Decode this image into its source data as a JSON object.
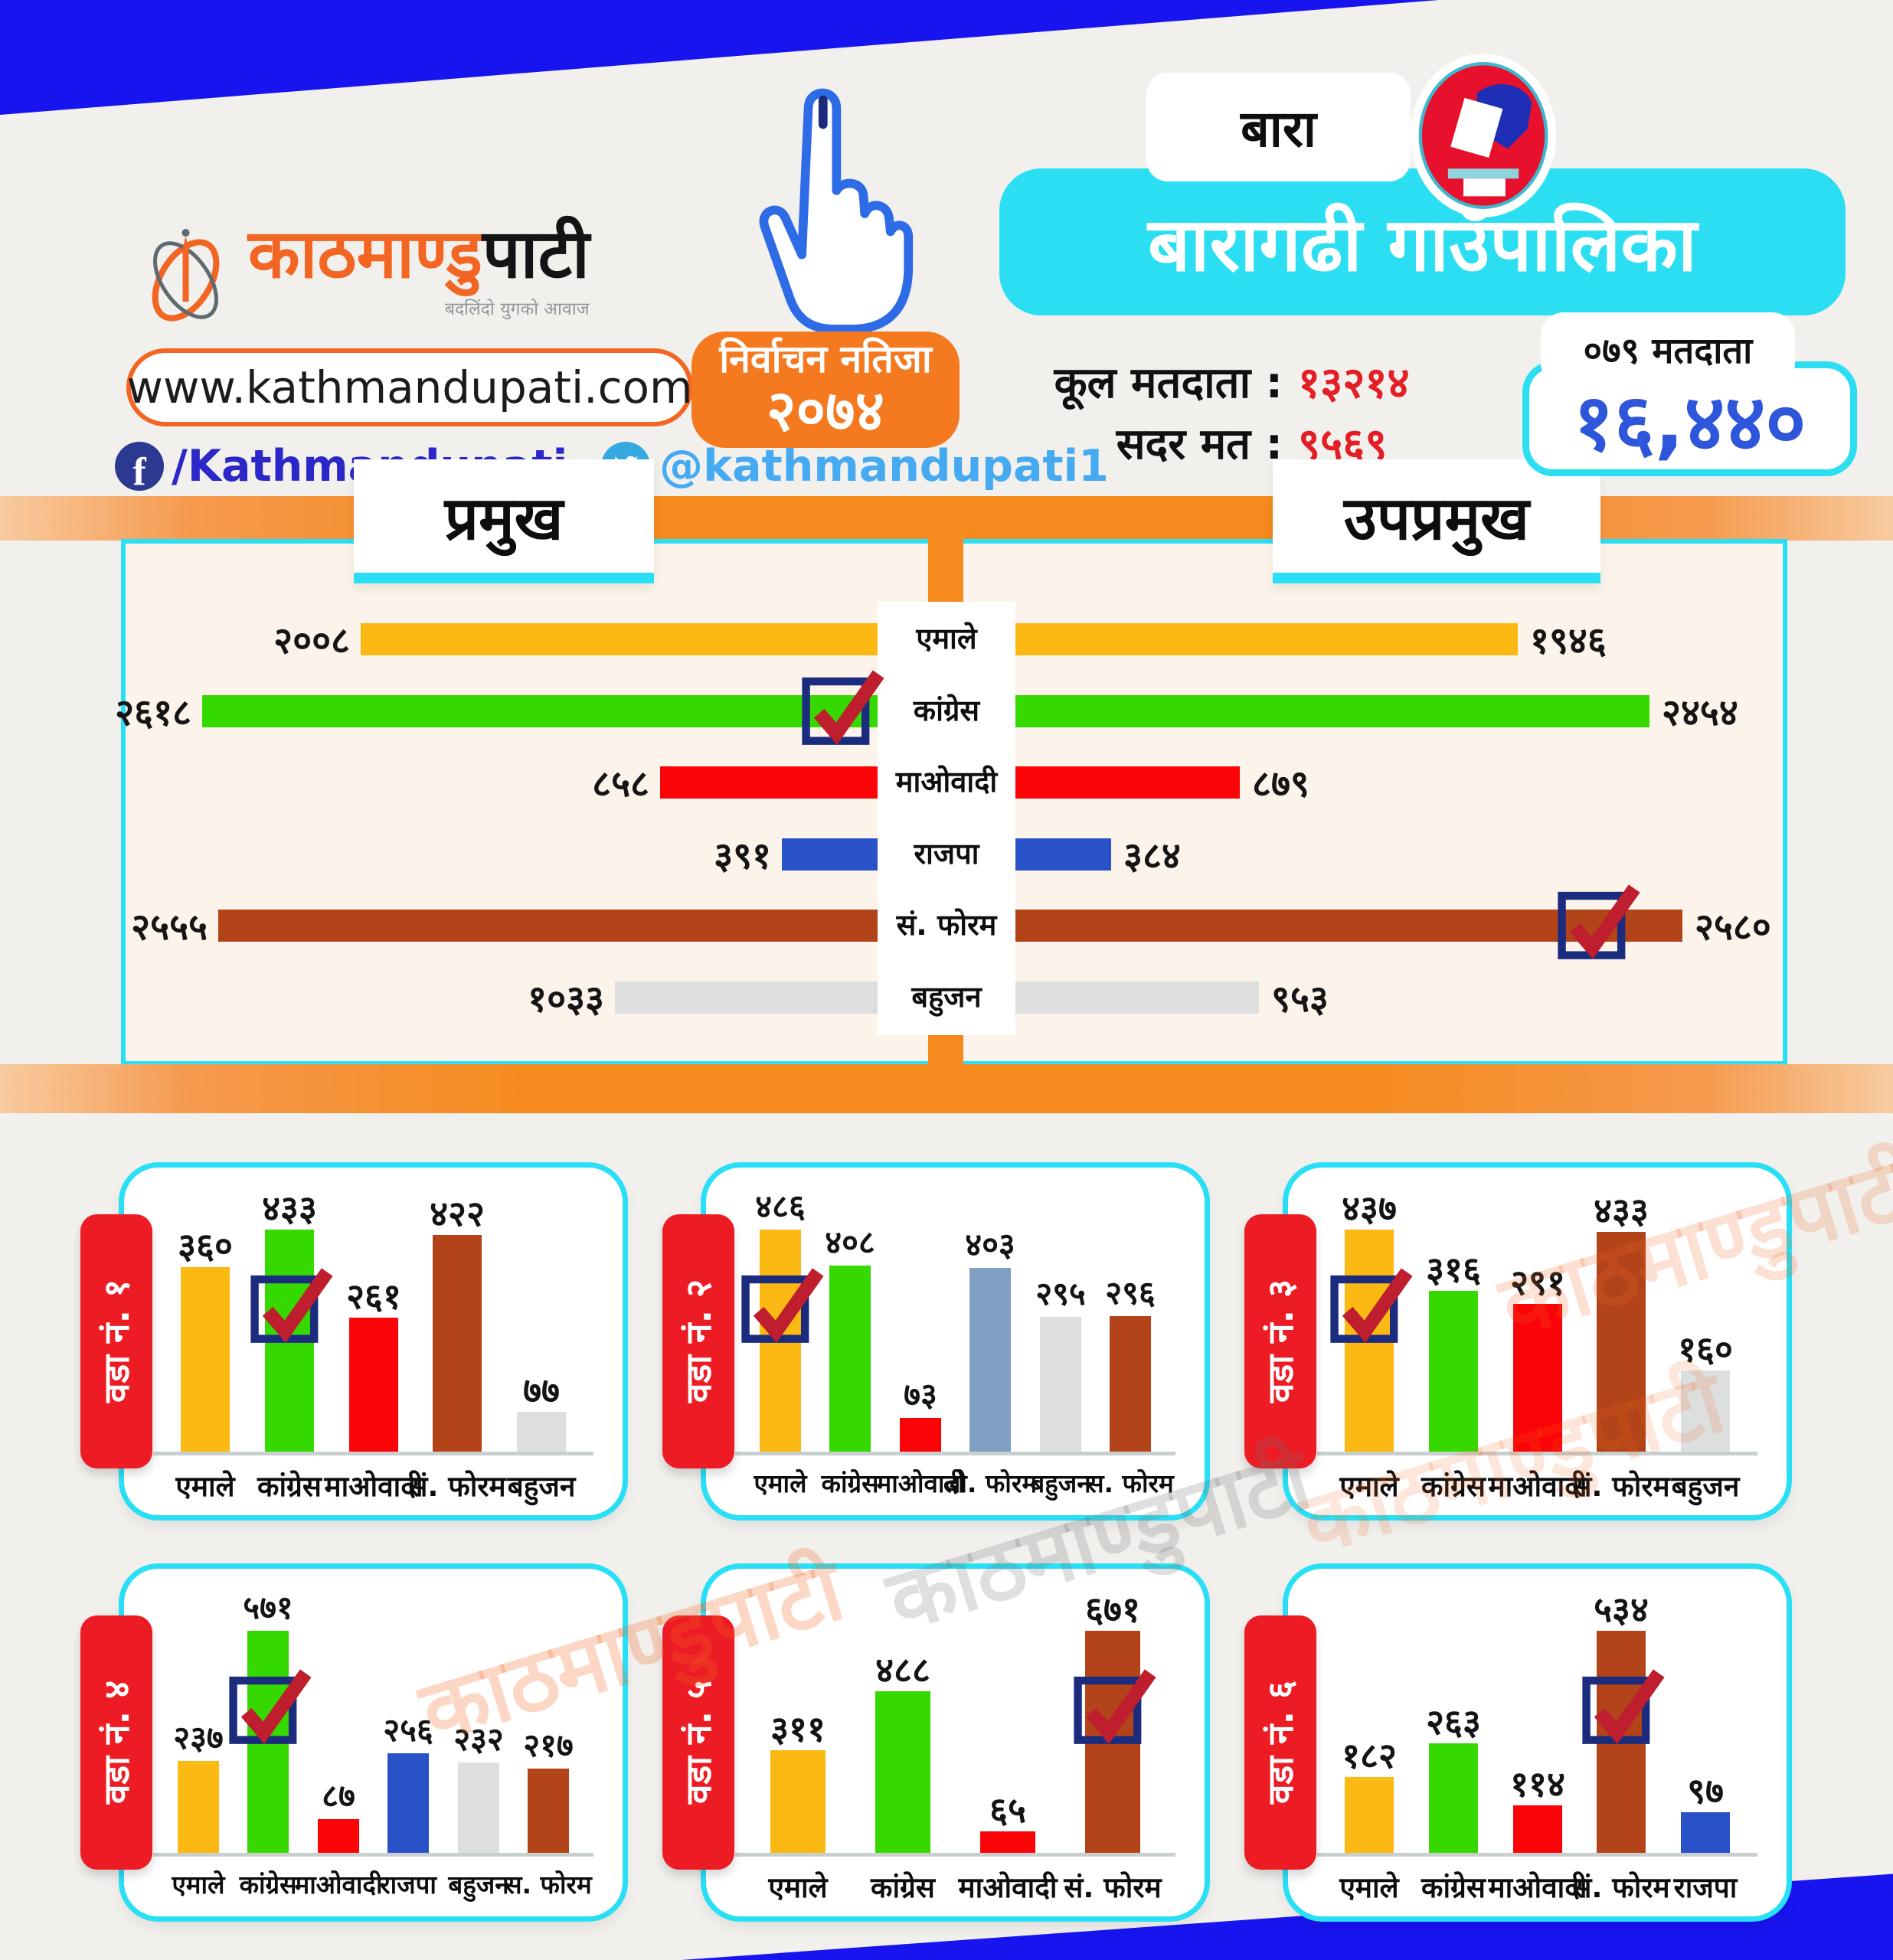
{
  "brand": {
    "logo_orange": "काठमाण्डु",
    "logo_black": "पाटी",
    "tagline": "बदलिंदो युगको आवाज",
    "website": "www.kathmandupati.com",
    "facebook": "/Kathmandupati",
    "twitter": "@kathmandupati1"
  },
  "header": {
    "district": "बारा",
    "title": "बारागढी गाउँपालिका",
    "election_box_line1": "निर्वाचन नतिजा",
    "election_box_line2": "२०७४",
    "total_voters_label": "कूल मतदाता :",
    "total_voters_value": "१३२१४",
    "valid_votes_label": "सदर मत :",
    "valid_votes_value": "९५६९",
    "voters_tab": "०७९ मतदाता",
    "big_number": "१६,४४०"
  },
  "watermark": "काठमाण्डुपाटी",
  "colors": {
    "uml_yellow": "#FDB913",
    "congress_green": "#35D900",
    "maoist_red": "#FB0407",
    "forum_brown": "#B34419",
    "bahujan_gray": "#DDDFDF",
    "lforum_steelblue": "#7FA0C2",
    "rajpa_blue": "#2A52C8",
    "cyan_accent": "#29DFF5",
    "orange_accent": "#F68A1E",
    "deep_blue": "#1814F0",
    "value_red": "#E31E24",
    "big_number_blue": "#2D56DB",
    "check_navy": "#1B2C7E",
    "check_red": "#BE1E2D",
    "tab_red": "#ED1C24"
  },
  "chart_data": [
    {
      "type": "bar",
      "subtype": "tornado",
      "left_title": "प्रमुख",
      "right_title": "उपप्रमुख",
      "categories": [
        "एमाले",
        "कांग्रेस",
        "माओवादी",
        "राजपा",
        "सं. फोरम",
        "बहुजन"
      ],
      "party_colors": [
        "#FDB913",
        "#35D900",
        "#FB0407",
        "#2A52C8",
        "#B34419",
        "#DDDFDF"
      ],
      "series": [
        {
          "name": "प्रमुख",
          "values": [
            2008,
            2618,
            858,
            391,
            2555,
            1033
          ],
          "labels": [
            "२००८",
            "२६१८",
            "८५८",
            "३९१",
            "२५५५",
            "१०३३"
          ],
          "winner_index": 1,
          "winner": "कांग्रेस"
        },
        {
          "name": "उपप्रमुख",
          "values": [
            1946,
            2454,
            879,
            384,
            2580,
            953
          ],
          "labels": [
            "१९४६",
            "२४५४",
            "८७९",
            "३८४",
            "२५८०",
            "९५३"
          ],
          "winner_index": 4,
          "winner": "सं. फोरम"
        }
      ],
      "legend_position": "none",
      "grid": false
    },
    {
      "type": "bar",
      "title": "वडा नं. १",
      "categories": [
        "एमाले",
        "कांग्रेस",
        "माओवादी",
        "सं. फोरम",
        "बहुजन"
      ],
      "values": [
        360,
        433,
        261,
        422,
        77
      ],
      "labels": [
        "३६०",
        "४३३",
        "२६१",
        "४२२",
        "७७"
      ],
      "colors": [
        "#FDB913",
        "#35D900",
        "#FB0407",
        "#B34419",
        "#DDDFDF"
      ],
      "winner_index": 1,
      "winner": "कांग्रेस"
    },
    {
      "type": "bar",
      "title": "वडा नं. २",
      "categories": [
        "एमाले",
        "कांग्रेस",
        "माओवादी",
        "लो. फोरम",
        "बहुजन",
        "स. फोरम"
      ],
      "values": [
        486,
        408,
        73,
        403,
        295,
        296
      ],
      "labels": [
        "४८६",
        "४०८",
        "७३",
        "४०३",
        "२९५",
        "२९६"
      ],
      "colors": [
        "#FDB913",
        "#35D900",
        "#FB0407",
        "#7FA0C2",
        "#DDDFDF",
        "#B34419"
      ],
      "winner_index": 0,
      "winner": "एमाले"
    },
    {
      "type": "bar",
      "title": "वडा नं. ३",
      "categories": [
        "एमाले",
        "कांग्रेस",
        "माओवादी",
        "सं. फोरम",
        "बहुजन"
      ],
      "values": [
        437,
        316,
        291,
        433,
        160
      ],
      "labels": [
        "४३७",
        "३१६",
        "२९१",
        "४३३",
        "१६०"
      ],
      "colors": [
        "#FDB913",
        "#35D900",
        "#FB0407",
        "#B34419",
        "#DDDFDF"
      ],
      "winner_index": 0,
      "winner": "एमाले"
    },
    {
      "type": "bar",
      "title": "वडा नं. ४",
      "categories": [
        "एमाले",
        "कांग्रेस",
        "माओवादी",
        "राजपा",
        "बहुजन",
        "स. फोरम"
      ],
      "values": [
        237,
        571,
        87,
        256,
        232,
        217
      ],
      "labels": [
        "२३७",
        "५७१",
        "८७",
        "२५६",
        "२३२",
        "२१७"
      ],
      "colors": [
        "#FDB913",
        "#35D900",
        "#FB0407",
        "#2A52C8",
        "#DDDFDF",
        "#B34419"
      ],
      "winner_index": 1,
      "winner": "कांग्रेस"
    },
    {
      "type": "bar",
      "title": "वडा नं. ५",
      "categories": [
        "एमाले",
        "कांग्रेस",
        "माओवादी",
        "सं. फोरम"
      ],
      "values": [
        311,
        488,
        65,
        671
      ],
      "labels": [
        "३११",
        "४८८",
        "६५",
        "६७१"
      ],
      "colors": [
        "#FDB913",
        "#35D900",
        "#FB0407",
        "#B34419"
      ],
      "winner_index": 3,
      "winner": "सं. फोरम"
    },
    {
      "type": "bar",
      "title": "वडा नं. ६",
      "categories": [
        "एमाले",
        "कांग्रेस",
        "माओवादी",
        "सं. फोरम",
        "राजपा"
      ],
      "values": [
        182,
        263,
        114,
        534,
        97
      ],
      "labels": [
        "१८२",
        "२६३",
        "११४",
        "५३४",
        "९७"
      ],
      "colors": [
        "#FDB913",
        "#35D900",
        "#FB0407",
        "#B34419",
        "#2A52C8"
      ],
      "winner_index": 3,
      "winner": "सं. फोरम"
    }
  ]
}
